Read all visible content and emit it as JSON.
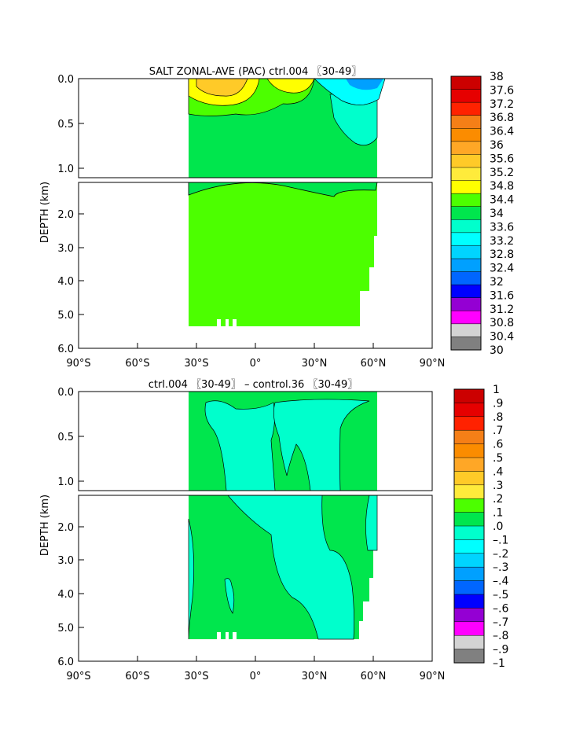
{
  "chart_data": [
    {
      "type": "heatmap",
      "title": "SALT ZONAL-AVE (PAC) ctrl.004 〖30-49〗",
      "ylabel": "DEPTH (km)",
      "x_ticks": [
        "90°S",
        "60°S",
        "30°S",
        "0°",
        "30°N",
        "60°N",
        "90°N"
      ],
      "x_values": [
        -90,
        -60,
        -30,
        0,
        30,
        60,
        90
      ],
      "xlim": [
        -90,
        90
      ],
      "upper_panel": {
        "ylim": [
          0,
          1.1
        ],
        "y_ticks": [
          "0.0",
          "0.5",
          "1.0"
        ],
        "y_values": [
          0,
          0.5,
          1.0
        ]
      },
      "lower_panel": {
        "ylim": [
          1.2,
          6.0
        ],
        "y_ticks": [
          "2.0",
          "3.0",
          "4.0",
          "5.0",
          "6.0"
        ],
        "y_values": [
          2,
          3,
          4,
          5,
          6
        ]
      },
      "colorbar": {
        "labels": [
          "38",
          "37.6",
          "37.2",
          "36.8",
          "36.4",
          "36",
          "35.6",
          "35.2",
          "34.8",
          "34.4",
          "34",
          "33.6",
          "33.2",
          "32.8",
          "32.4",
          "32",
          "31.6",
          "31.2",
          "30.8",
          "30.4",
          "30"
        ],
        "colors": [
          "#cc0000",
          "#e60000",
          "#ff2200",
          "#f57f17",
          "#fb8c00",
          "#ffa726",
          "#ffca28",
          "#ffeb3b",
          "#ffff00",
          "#4cff00",
          "#00e64d",
          "#00ffcc",
          "#00ffff",
          "#00d4ff",
          "#00a0ff",
          "#0066ff",
          "#0000ff",
          "#9400d3",
          "#ff00ff",
          "#d3d3d3",
          "#808080"
        ]
      }
    },
    {
      "type": "heatmap",
      "title": "ctrl.004 〖30-49〗 – control.36 〖30-49〗",
      "ylabel": "DEPTH (km)",
      "x_ticks": [
        "90°S",
        "60°S",
        "30°S",
        "0°",
        "30°N",
        "60°N",
        "90°N"
      ],
      "x_values": [
        -90,
        -60,
        -30,
        0,
        30,
        60,
        90
      ],
      "xlim": [
        -90,
        90
      ],
      "upper_panel": {
        "ylim": [
          0,
          1.1
        ],
        "y_ticks": [
          "0.0",
          "0.5",
          "1.0"
        ],
        "y_values": [
          0,
          0.5,
          1.0
        ]
      },
      "lower_panel": {
        "ylim": [
          1.2,
          6.0
        ],
        "y_ticks": [
          "2.0",
          "3.0",
          "4.0",
          "5.0",
          "6.0"
        ],
        "y_values": [
          2,
          3,
          4,
          5,
          6
        ]
      },
      "colorbar": {
        "labels": [
          "1",
          ".9",
          ".8",
          ".7",
          ".6",
          ".5",
          ".4",
          ".3",
          ".2",
          ".1",
          ".0",
          "–.1",
          "–.2",
          "–.3",
          "–.4",
          "–.5",
          "–.6",
          "–.7",
          "–.8",
          "–.9",
          "–1"
        ],
        "colors": [
          "#cc0000",
          "#e60000",
          "#ff2200",
          "#f57f17",
          "#fb8c00",
          "#ffa726",
          "#ffca28",
          "#ffeb3b",
          "#4cff00",
          "#00e64d",
          "#00ffcc",
          "#00ffff",
          "#00d4ff",
          "#00a0ff",
          "#0066ff",
          "#0000ff",
          "#9400d3",
          "#ff00ff",
          "#d3d3d3",
          "#808080"
        ]
      }
    }
  ]
}
